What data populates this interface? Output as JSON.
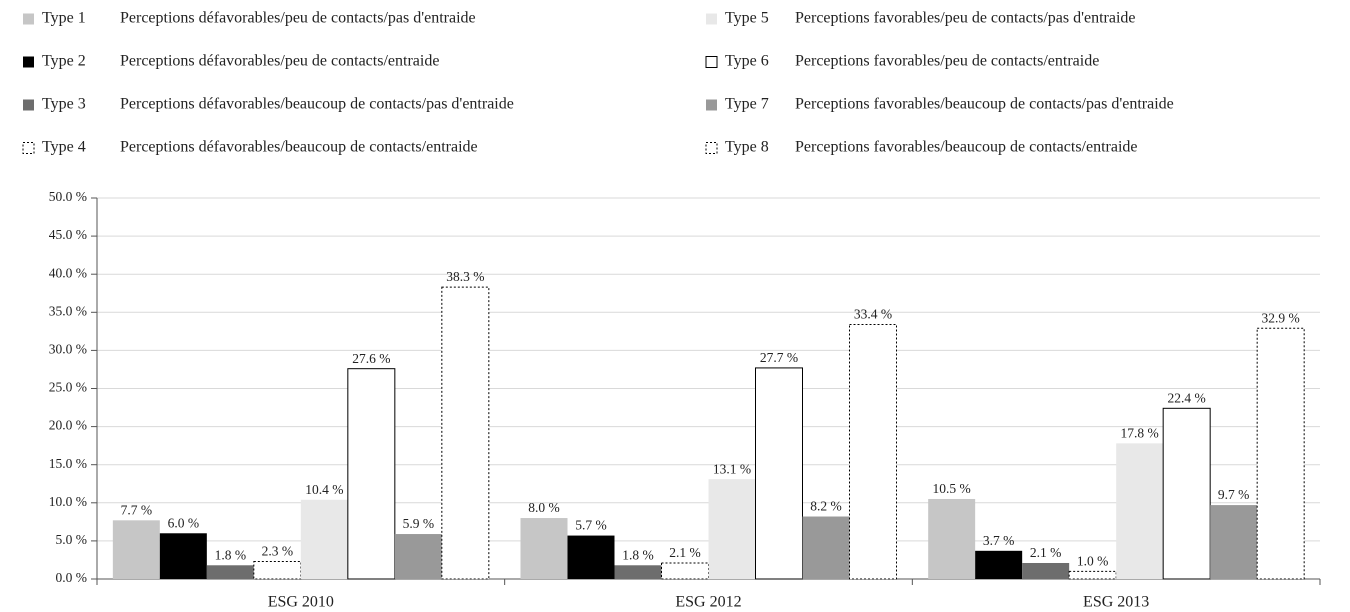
{
  "chart_data": {
    "type": "bar",
    "categories": [
      "ESG 2010",
      "ESG 2012",
      "ESG 2013"
    ],
    "series": [
      {
        "name": "Type 1",
        "label": "Perceptions défavorables/peu de contacts/pas d'entraide",
        "color": "#c6c6c6",
        "outline": "none",
        "values": [
          7.7,
          8.0,
          10.5
        ],
        "value_labels": [
          "7.7 %",
          "8.0 %",
          "10.5 %"
        ]
      },
      {
        "name": "Type 2",
        "label": "Perceptions défavorables/peu de contacts/entraide",
        "color": "#000000",
        "outline": "none",
        "values": [
          6.0,
          5.7,
          3.7
        ],
        "value_labels": [
          "6.0 %",
          "5.7 %",
          "3.7 %"
        ]
      },
      {
        "name": "Type 3",
        "label": "Perceptions défavorables/beaucoup de contacts/pas d'entraide",
        "color": "#6d6d6d",
        "outline": "none",
        "values": [
          1.8,
          1.8,
          2.1
        ],
        "value_labels": [
          "1.8 %",
          "1.8 %",
          "2.1 %"
        ]
      },
      {
        "name": "Type 4",
        "label": "Perceptions défavorables/beaucoup de contacts/entraide",
        "color": "#ffffff",
        "outline": "dotted",
        "values": [
          2.3,
          2.1,
          1.0
        ],
        "value_labels": [
          "2.3 %",
          "2.1 %",
          "1.0 %"
        ]
      },
      {
        "name": "Type 5",
        "label": "Perceptions favorables/peu de contacts/pas d'entraide",
        "color": "#e8e8e8",
        "outline": "none",
        "values": [
          10.4,
          13.1,
          17.8
        ],
        "value_labels": [
          "10.4 %",
          "13.1 %",
          "17.8 %"
        ]
      },
      {
        "name": "Type 6",
        "label": "Perceptions favorables/peu de contacts/entraide",
        "color": "#ffffff",
        "outline": "solid",
        "values": [
          27.6,
          27.7,
          22.4
        ],
        "value_labels": [
          "27.6 %",
          "27.7 %",
          "22.4 %"
        ]
      },
      {
        "name": "Type 7",
        "label": "Perceptions favorables/beaucoup de contacts/pas d'entraide",
        "color": "#999999",
        "outline": "none",
        "values": [
          5.9,
          8.2,
          9.7
        ],
        "value_labels": [
          "5.9 %",
          "8.2 %",
          "9.7 %"
        ]
      },
      {
        "name": "Type 8",
        "label": "Perceptions favorables/beaucoup de contacts/entraide",
        "color": "#ffffff",
        "outline": "dotted",
        "values": [
          38.3,
          33.4,
          32.9
        ],
        "value_labels": [
          "38.3 %",
          "33.4 %",
          "32.9 %"
        ]
      }
    ],
    "ylim": [
      0,
      50
    ],
    "yticks": [
      {
        "value": 0,
        "label": "0.0 %"
      },
      {
        "value": 5,
        "label": "5.0 %"
      },
      {
        "value": 10,
        "label": "10.0 %"
      },
      {
        "value": 15,
        "label": "15.0 %"
      },
      {
        "value": 20,
        "label": "20.0 %"
      },
      {
        "value": 25,
        "label": "25.0 %"
      },
      {
        "value": 30,
        "label": "30.0 %"
      },
      {
        "value": 35,
        "label": "35.0 %"
      },
      {
        "value": 40,
        "label": "40.0 %"
      },
      {
        "value": 45,
        "label": "45.0 %"
      },
      {
        "value": 50,
        "label": "50.0 %"
      }
    ],
    "grid": true
  }
}
